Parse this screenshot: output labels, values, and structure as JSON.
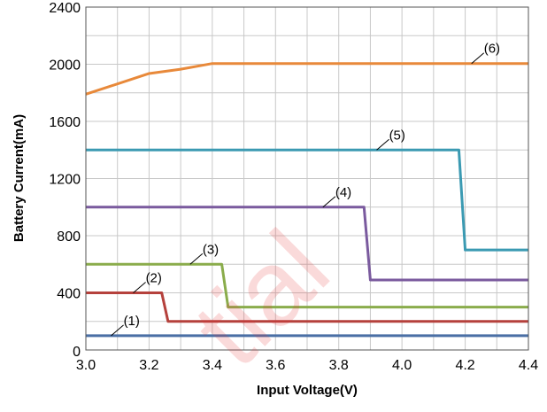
{
  "chart_data": {
    "type": "line",
    "title": "",
    "xlabel": "Input Voltage(V)",
    "ylabel": "Battery Current(mA)",
    "xlim": [
      3.0,
      4.4
    ],
    "ylim": [
      0,
      2400
    ],
    "xticks": [
      3.0,
      3.2,
      3.4,
      3.6,
      3.8,
      4.0,
      4.2,
      4.4
    ],
    "xtick_labels": [
      "3.0",
      "3.2",
      "3.4",
      "3.6",
      "3.8",
      "4.0",
      "4.2",
      "4.4"
    ],
    "yticks": [
      0,
      400,
      800,
      1200,
      1600,
      2000,
      2400
    ],
    "ytick_labels": [
      "0",
      "400",
      "800",
      "1200",
      "1600",
      "2000",
      "2400"
    ],
    "grid": true,
    "legend": "none",
    "series": [
      {
        "label": "(1)",
        "color": "#4a6fa5",
        "points": [
          [
            3.0,
            100
          ],
          [
            4.4,
            100
          ]
        ],
        "label_at": [
          3.08,
          100
        ]
      },
      {
        "label": "(2)",
        "color": "#b5413c",
        "points": [
          [
            3.0,
            400
          ],
          [
            3.24,
            400
          ],
          [
            3.26,
            200
          ],
          [
            4.4,
            200
          ]
        ],
        "label_at": [
          3.15,
          400
        ]
      },
      {
        "label": "(3)",
        "color": "#8aac4b",
        "points": [
          [
            3.0,
            600
          ],
          [
            3.43,
            600
          ],
          [
            3.45,
            300
          ],
          [
            4.4,
            300
          ]
        ],
        "label_at": [
          3.33,
          600
        ]
      },
      {
        "label": "(4)",
        "color": "#7a5a9e",
        "points": [
          [
            3.0,
            1000
          ],
          [
            3.88,
            1000
          ],
          [
            3.9,
            490
          ],
          [
            4.4,
            490
          ]
        ],
        "label_at": [
          3.75,
          1000
        ]
      },
      {
        "label": "(5)",
        "color": "#3b9ab2",
        "points": [
          [
            3.0,
            1400
          ],
          [
            4.18,
            1400
          ],
          [
            4.2,
            700
          ],
          [
            4.4,
            700
          ]
        ],
        "label_at": [
          3.92,
          1400
        ]
      },
      {
        "label": "(6)",
        "color": "#e8893a",
        "points": [
          [
            3.0,
            1790
          ],
          [
            3.2,
            1935
          ],
          [
            3.3,
            1965
          ],
          [
            3.4,
            2005
          ],
          [
            4.4,
            2005
          ]
        ],
        "label_at": [
          4.22,
          2005
        ]
      }
    ]
  },
  "watermark": "tial"
}
